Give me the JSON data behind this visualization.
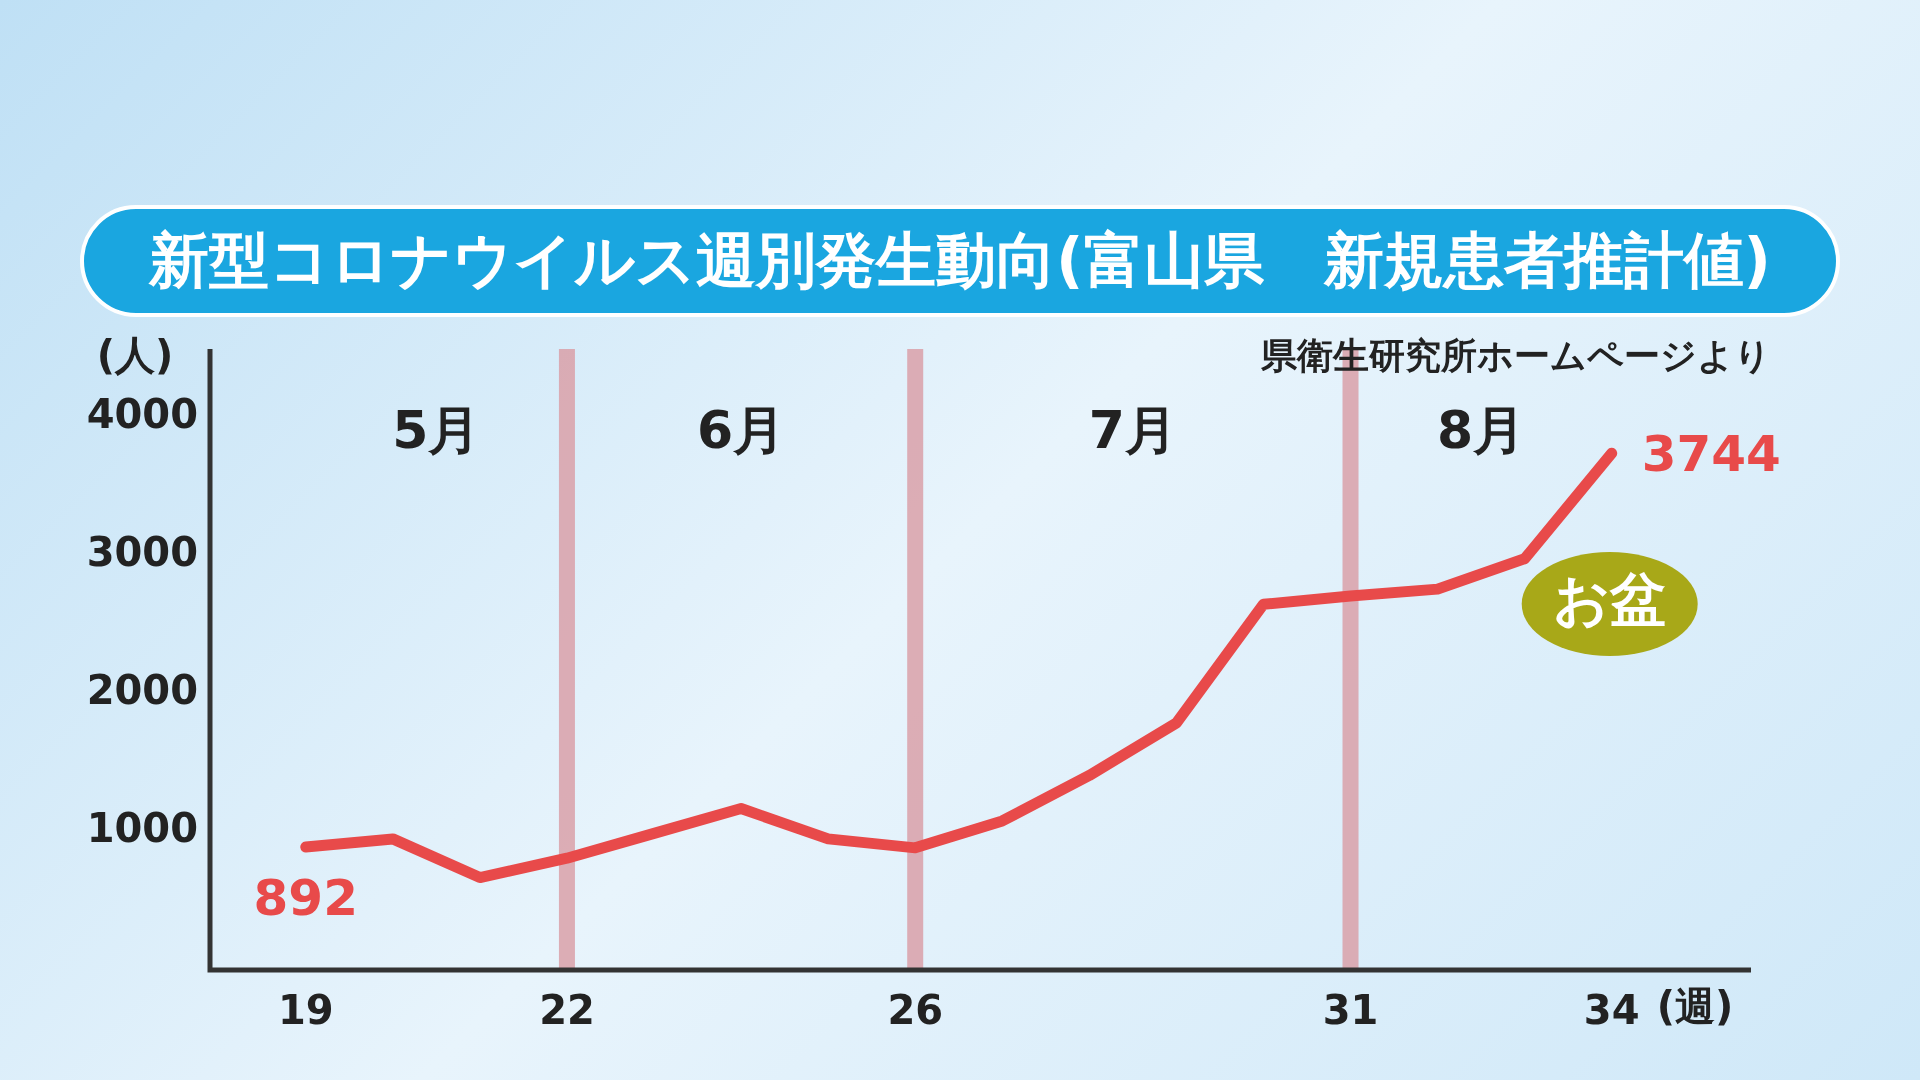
{
  "chart_data": {
    "type": "line",
    "title": "新型コロナウイルス週別発生動向(富山県　新規患者推計値)",
    "xlabel": "(週)",
    "ylabel": "(人)",
    "x": [
      19,
      20,
      21,
      22,
      23,
      24,
      25,
      26,
      27,
      28,
      29,
      30,
      31,
      32,
      33,
      34
    ],
    "series": [
      {
        "color": "#e84a4a",
        "values": [
          892,
          950,
          670,
          810,
          990,
          1170,
          950,
          885,
          1080,
          1410,
          1790,
          2650,
          2710,
          2760,
          2980,
          3744
        ],
        "value_labels": [
          "892",
          null,
          null,
          null,
          null,
          null,
          null,
          null,
          null,
          null,
          null,
          null,
          null,
          null,
          null,
          "3744"
        ]
      }
    ],
    "xlim": [
      17.9,
      35.6
    ],
    "xticks": [
      19,
      22,
      26,
      31,
      34
    ],
    "ylim": [
      0,
      4500
    ],
    "yticks": [
      1000,
      2000,
      3000,
      4000
    ],
    "marker": "none",
    "ref_lines": [
      {
        "axis": "x",
        "value": 22,
        "color": "#d9a0a8"
      },
      {
        "axis": "x",
        "value": 26,
        "color": "#d9a0a8"
      },
      {
        "axis": "x",
        "value": 31,
        "color": "#d9a0a8"
      }
    ],
    "annotations": [
      "5月",
      "6月",
      "7月",
      "8月",
      "お盆",
      "県衛生研究所ホームページより"
    ]
  }
}
